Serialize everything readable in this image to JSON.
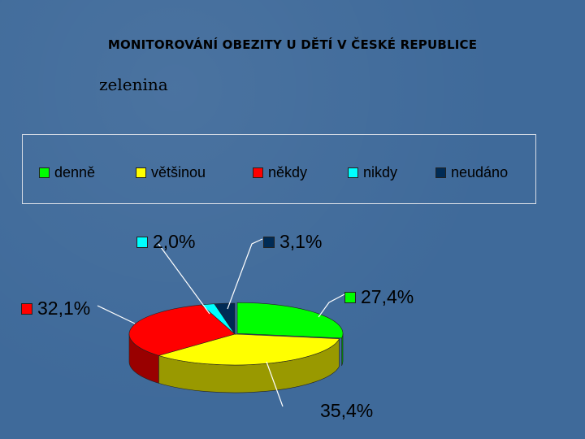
{
  "slide": {
    "title": "MONITOROVÁNÍ OBEZITY U DĚTÍ V ČESKÉ REPUBLICE",
    "subtitle": "zelenina"
  },
  "chart_data": {
    "type": "pie",
    "style": "3d-exploded",
    "legend_position": "top",
    "categories": [
      "denně",
      "většinou",
      "někdy",
      "nikdy",
      "neudáno"
    ],
    "values": [
      27.4,
      35.4,
      32.1,
      2.0,
      3.1
    ],
    "value_labels": [
      "27,4%",
      "35,4%",
      "32,1%",
      "2,0%",
      "3,1%"
    ],
    "colors": [
      "#00ff00",
      "#ffff00",
      "#ff0000",
      "#00ffff",
      "#002b55"
    ]
  }
}
